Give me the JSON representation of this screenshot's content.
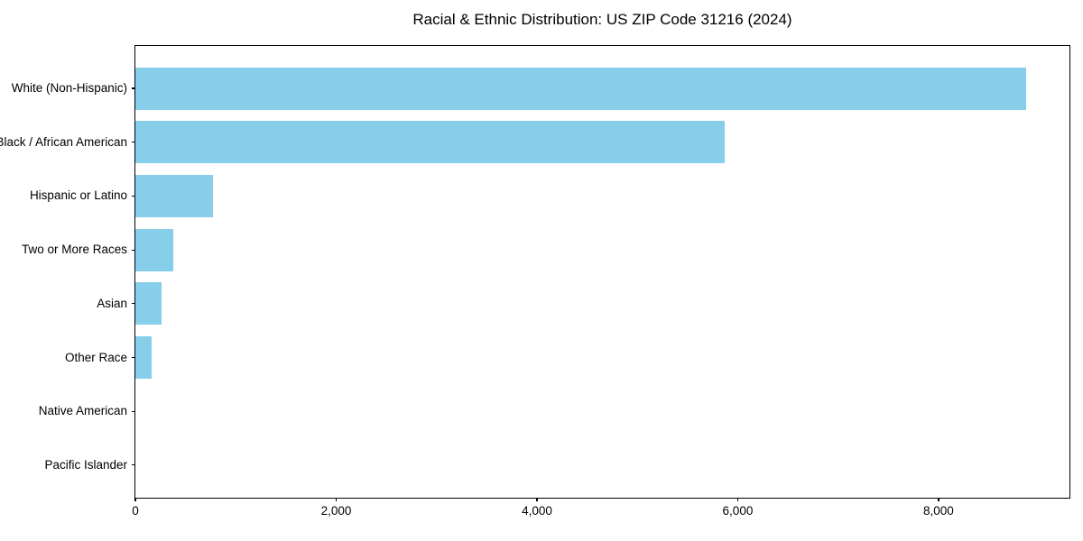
{
  "page": {
    "background_color": "#ffffff",
    "text_color": "#000000"
  },
  "chart_data": {
    "type": "bar",
    "orientation": "horizontal",
    "title": "Racial & Ethnic Distribution: US ZIP Code 31216 (2024)",
    "categories": [
      "White (Non-Hispanic)",
      "Black / African American",
      "Hispanic or Latino",
      "Two or More Races",
      "Asian",
      "Other Race",
      "Native American",
      "Pacific Islander"
    ],
    "values": [
      8872,
      5867,
      773,
      375,
      263,
      159,
      0,
      0
    ],
    "bar_color": "#87CEEB",
    "xlabel": "",
    "ylabel": "",
    "xlim": [
      0,
      9322
    ],
    "xticks": {
      "values": [
        0,
        2000,
        4000,
        6000,
        8000
      ],
      "labels": [
        "0",
        "2,000",
        "4,000",
        "6,000",
        "8,000"
      ]
    },
    "grid": false,
    "legend": null,
    "value_labels_shown": false
  }
}
